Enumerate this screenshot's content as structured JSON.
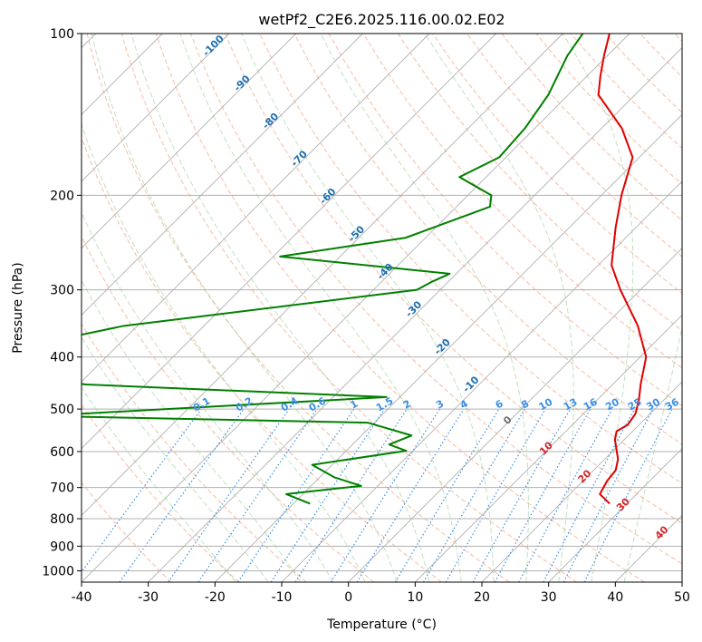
{
  "chart_data": {
    "type": "line",
    "title": "wetPf2_C2E6.2025.116.00.02.E02",
    "xlabel": "Temperature (°C)",
    "ylabel": "Pressure (hPa)",
    "xlim": [
      -40,
      50
    ],
    "ylim": [
      1050,
      100
    ],
    "y_scale": "log",
    "skew": true,
    "grid": true,
    "x_ticks": [
      "-40",
      "-30",
      "-20",
      "-10",
      "0",
      "10",
      "20",
      "30",
      "40",
      "50"
    ],
    "y_ticks": [
      "100",
      "200",
      "300",
      "400",
      "500",
      "600",
      "700",
      "800",
      "900",
      "1000"
    ],
    "series": [
      {
        "color": "#e00000",
        "style": "temperature",
        "points": [
          [
            27.4,
            750
          ],
          [
            24.5,
            720
          ],
          [
            23.6,
            680
          ],
          [
            23.3,
            650
          ],
          [
            22.0,
            620
          ],
          [
            18.6,
            570
          ],
          [
            17.6,
            550
          ],
          [
            18.3,
            535
          ],
          [
            17.8,
            510
          ],
          [
            16.2,
            480
          ],
          [
            14.2,
            450
          ],
          [
            10.9,
            400
          ],
          [
            5.0,
            350
          ],
          [
            -3.0,
            300
          ],
          [
            -8.0,
            270
          ],
          [
            -13.0,
            230
          ],
          [
            -17.0,
            200
          ],
          [
            -21.0,
            170
          ],
          [
            -27.0,
            150
          ],
          [
            -35.5,
            130
          ],
          [
            -38.0,
            120
          ],
          [
            -40.5,
            110
          ],
          [
            -43.0,
            100
          ]
        ]
      },
      {
        "color": "#008000",
        "style": "dewpoint",
        "points": [
          [
            -17.5,
            750
          ],
          [
            -22.5,
            720
          ],
          [
            -12.5,
            695
          ],
          [
            -17.8,
            670
          ],
          [
            -23.0,
            635
          ],
          [
            -11.0,
            598
          ],
          [
            -14.5,
            582
          ],
          [
            -12.5,
            560
          ],
          [
            -21.0,
            530
          ],
          [
            -71.0,
            515
          ],
          [
            -22.0,
            475
          ],
          [
            -69.0,
            450
          ],
          [
            -93.0,
            410
          ],
          [
            -72.0,
            350
          ],
          [
            -33.5,
            300
          ],
          [
            -32.5,
            290
          ],
          [
            -31.0,
            280
          ],
          [
            -59.0,
            260
          ],
          [
            -43.0,
            240
          ],
          [
            -35.0,
            210
          ],
          [
            -36.5,
            200
          ],
          [
            -44.0,
            185
          ],
          [
            -41.0,
            170
          ],
          [
            -41.5,
            150
          ],
          [
            -43.0,
            130
          ],
          [
            -46.0,
            110
          ],
          [
            -47.0,
            100
          ]
        ]
      }
    ],
    "isotherm_labels": [
      "-100",
      "-90",
      "-80",
      "-70",
      "-60",
      "-50",
      "-40",
      "-30",
      "-20",
      "-10"
    ],
    "mixing_ratio_labels": [
      "0.1",
      "0.2",
      "0.4",
      "0.6",
      "1",
      "1.5",
      "2",
      "3",
      "4",
      "6",
      "8",
      "10",
      "13",
      "16",
      "20",
      "25",
      "30",
      "36"
    ],
    "moist_adiabat_labels": [
      "0",
      "10",
      "20",
      "30",
      "40"
    ],
    "colors": {
      "temperature": "#e00000",
      "dewpoint": "#008000",
      "grid": "#b0b0b0",
      "dry_adiabat": "#f4a582",
      "moist_adiabat": "#8fc98f",
      "mixing_ratio": "#3a8fe6",
      "isotherm_label": "#1f6fb0",
      "moist_label": "#d62728",
      "zero_label": "#707070"
    }
  }
}
